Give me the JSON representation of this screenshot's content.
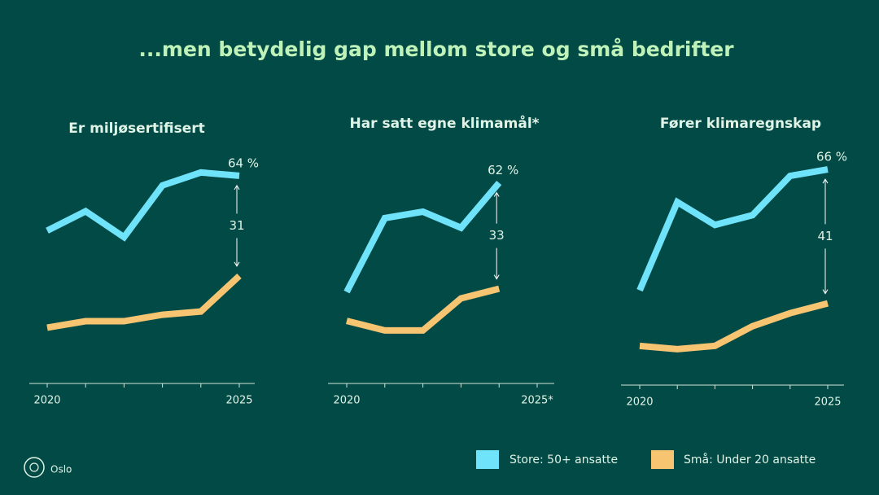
{
  "title": "...men betydelig gap mellom store og små bedrifter",
  "chart_data": [
    {
      "type": "line",
      "title": "Er miljøsertifisert",
      "categories": [
        "2020",
        null,
        null,
        null,
        null,
        "2025"
      ],
      "ylim": [
        0,
        70
      ],
      "series": [
        {
          "name": "Store: 50+ ansatte",
          "color": "#6fe3fa",
          "values": [
            47,
            53,
            45,
            61,
            65,
            64
          ],
          "value_labels": [
            null,
            null,
            null,
            null,
            null,
            "64 %"
          ]
        },
        {
          "name": "Små: Under 20 ansatte",
          "color": "#f7c471",
          "values": [
            17,
            19,
            19,
            21,
            22,
            33
          ]
        }
      ],
      "gap": 31
    },
    {
      "type": "line",
      "title": "Har satt egne klimamål*",
      "categories": [
        "2020",
        null,
        null,
        null,
        null,
        "2025*"
      ],
      "ylim": [
        0,
        70
      ],
      "series": [
        {
          "color": "#6fe3fa",
          "values": [
            28,
            51,
            53,
            48,
            62,
            null
          ],
          "value_labels": [
            null,
            null,
            null,
            null,
            "62 %",
            null
          ]
        },
        {
          "color": "#f7c471",
          "values": [
            19,
            16,
            16,
            26,
            29,
            null
          ]
        }
      ],
      "gap": 33
    },
    {
      "type": "line",
      "title": "Fører klimaregnskap",
      "categories": [
        "2020",
        null,
        null,
        null,
        null,
        "2025"
      ],
      "ylim": [
        0,
        70
      ],
      "series": [
        {
          "color": "#6fe3fa",
          "values": [
            29,
            56,
            49,
            52,
            64,
            66
          ],
          "value_labels": [
            null,
            null,
            null,
            null,
            null,
            "66 %"
          ]
        },
        {
          "color": "#f7c471",
          "values": [
            12,
            11,
            12,
            18,
            22,
            25
          ]
        }
      ],
      "gap": 41
    }
  ],
  "logo": "Oslo"
}
